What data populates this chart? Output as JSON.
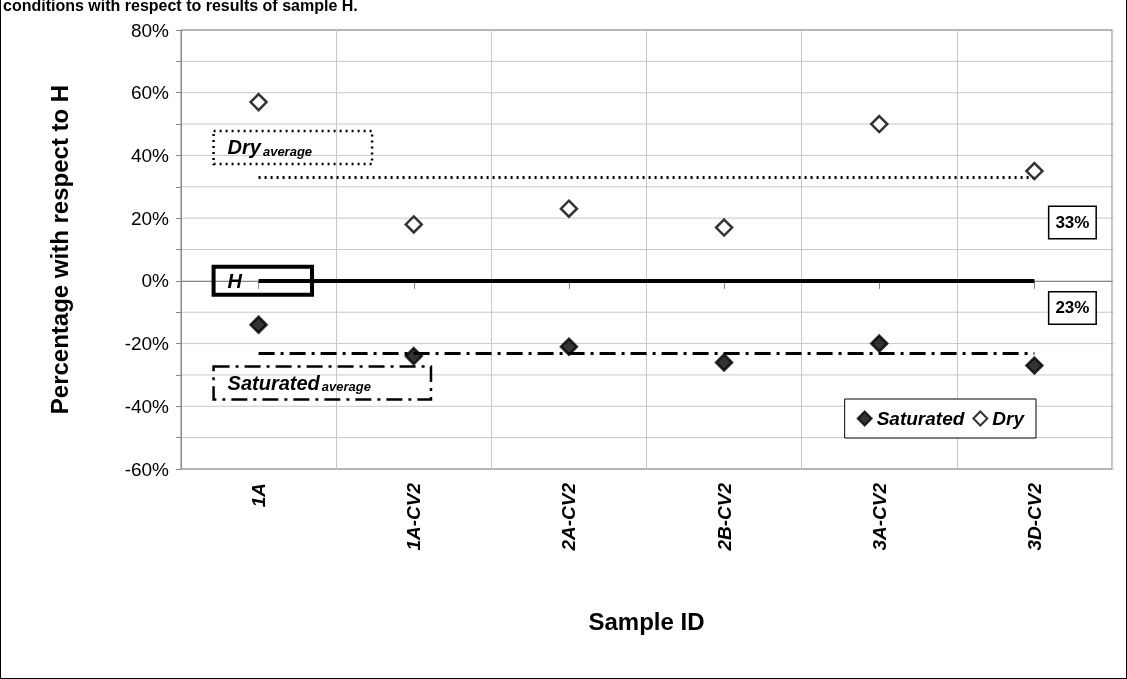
{
  "chart_data": {
    "type": "scatter",
    "title": "conditions with respect to results of sample H.",
    "xlabel": "Sample ID",
    "ylabel": "Percentage with respect to H",
    "categories": [
      "1A",
      "1A-CV2",
      "2A-CV2",
      "2B-CV2",
      "3A-CV2",
      "3D-CV2"
    ],
    "series": [
      {
        "name": "Saturated",
        "color": "#000000",
        "values": [
          -14,
          -24,
          -21,
          -26,
          -20,
          -27
        ]
      },
      {
        "name": "Dry",
        "color": "#ffffff",
        "values": [
          57,
          18,
          23,
          17,
          50,
          35
        ]
      }
    ],
    "ylim": [
      -60,
      80
    ],
    "yticks": [
      {
        "value": -60,
        "label": "-60%"
      },
      {
        "value": -50,
        "label": null
      },
      {
        "value": -40,
        "label": "-40%"
      },
      {
        "value": -30,
        "label": null
      },
      {
        "value": -20,
        "label": "-20%"
      },
      {
        "value": -10,
        "label": null
      },
      {
        "value": 0,
        "label": "0%"
      },
      {
        "value": 10,
        "label": null
      },
      {
        "value": 20,
        "label": "20%"
      },
      {
        "value": 30,
        "label": null
      },
      {
        "value": 40,
        "label": "40%"
      },
      {
        "value": 50,
        "label": null
      },
      {
        "value": 60,
        "label": "60%"
      },
      {
        "value": 70,
        "label": null
      },
      {
        "value": 80,
        "label": "80%"
      }
    ],
    "ref_lines": [
      {
        "axis": "y",
        "value": 0,
        "label": "H",
        "line_style": "solid",
        "color": "#000000"
      },
      {
        "axis": "y",
        "value": 33,
        "label": "Dry$_{average}$",
        "line_style": "dotted",
        "color": "#000000"
      },
      {
        "axis": "y",
        "value": -23,
        "label": "Saturated$_{average}$",
        "line_style": "dashdot",
        "color": "#000000"
      }
    ],
    "annotations": [
      {
        "text": "33%",
        "x": "3D-CV2",
        "y": 33
      },
      {
        "text": "23%",
        "x": "3D-CV2",
        "y": -23
      }
    ],
    "grid": true,
    "legend": "bottom right",
    "marker": "diamond"
  }
}
